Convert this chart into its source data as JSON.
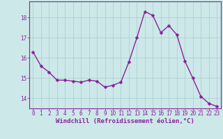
{
  "x": [
    0,
    1,
    2,
    3,
    4,
    5,
    6,
    7,
    8,
    9,
    10,
    11,
    12,
    13,
    14,
    15,
    16,
    17,
    18,
    19,
    20,
    21,
    22,
    23
  ],
  "y": [
    16.3,
    15.6,
    15.3,
    14.9,
    14.9,
    14.85,
    14.8,
    14.9,
    14.85,
    14.55,
    14.65,
    14.8,
    15.8,
    17.0,
    18.3,
    18.1,
    17.25,
    17.6,
    17.15,
    15.85,
    15.0,
    14.1,
    13.75,
    13.6
  ],
  "line_color": "#882299",
  "marker_color": "#882299",
  "bg_color": "#CCE8E8",
  "grid_color": "#AACCCC",
  "tick_color": "#882299",
  "xlabel": "Windchill (Refroidissement éolien,°C)",
  "ylim": [
    13.5,
    18.8
  ],
  "yticks": [
    14,
    15,
    16,
    17,
    18
  ],
  "xticks": [
    0,
    1,
    2,
    3,
    4,
    5,
    6,
    7,
    8,
    9,
    10,
    11,
    12,
    13,
    14,
    15,
    16,
    17,
    18,
    19,
    20,
    21,
    22,
    23
  ],
  "font_size_ticks": 5.5,
  "font_size_xlabel": 6.5,
  "marker_size": 2.5,
  "line_width": 1.0
}
